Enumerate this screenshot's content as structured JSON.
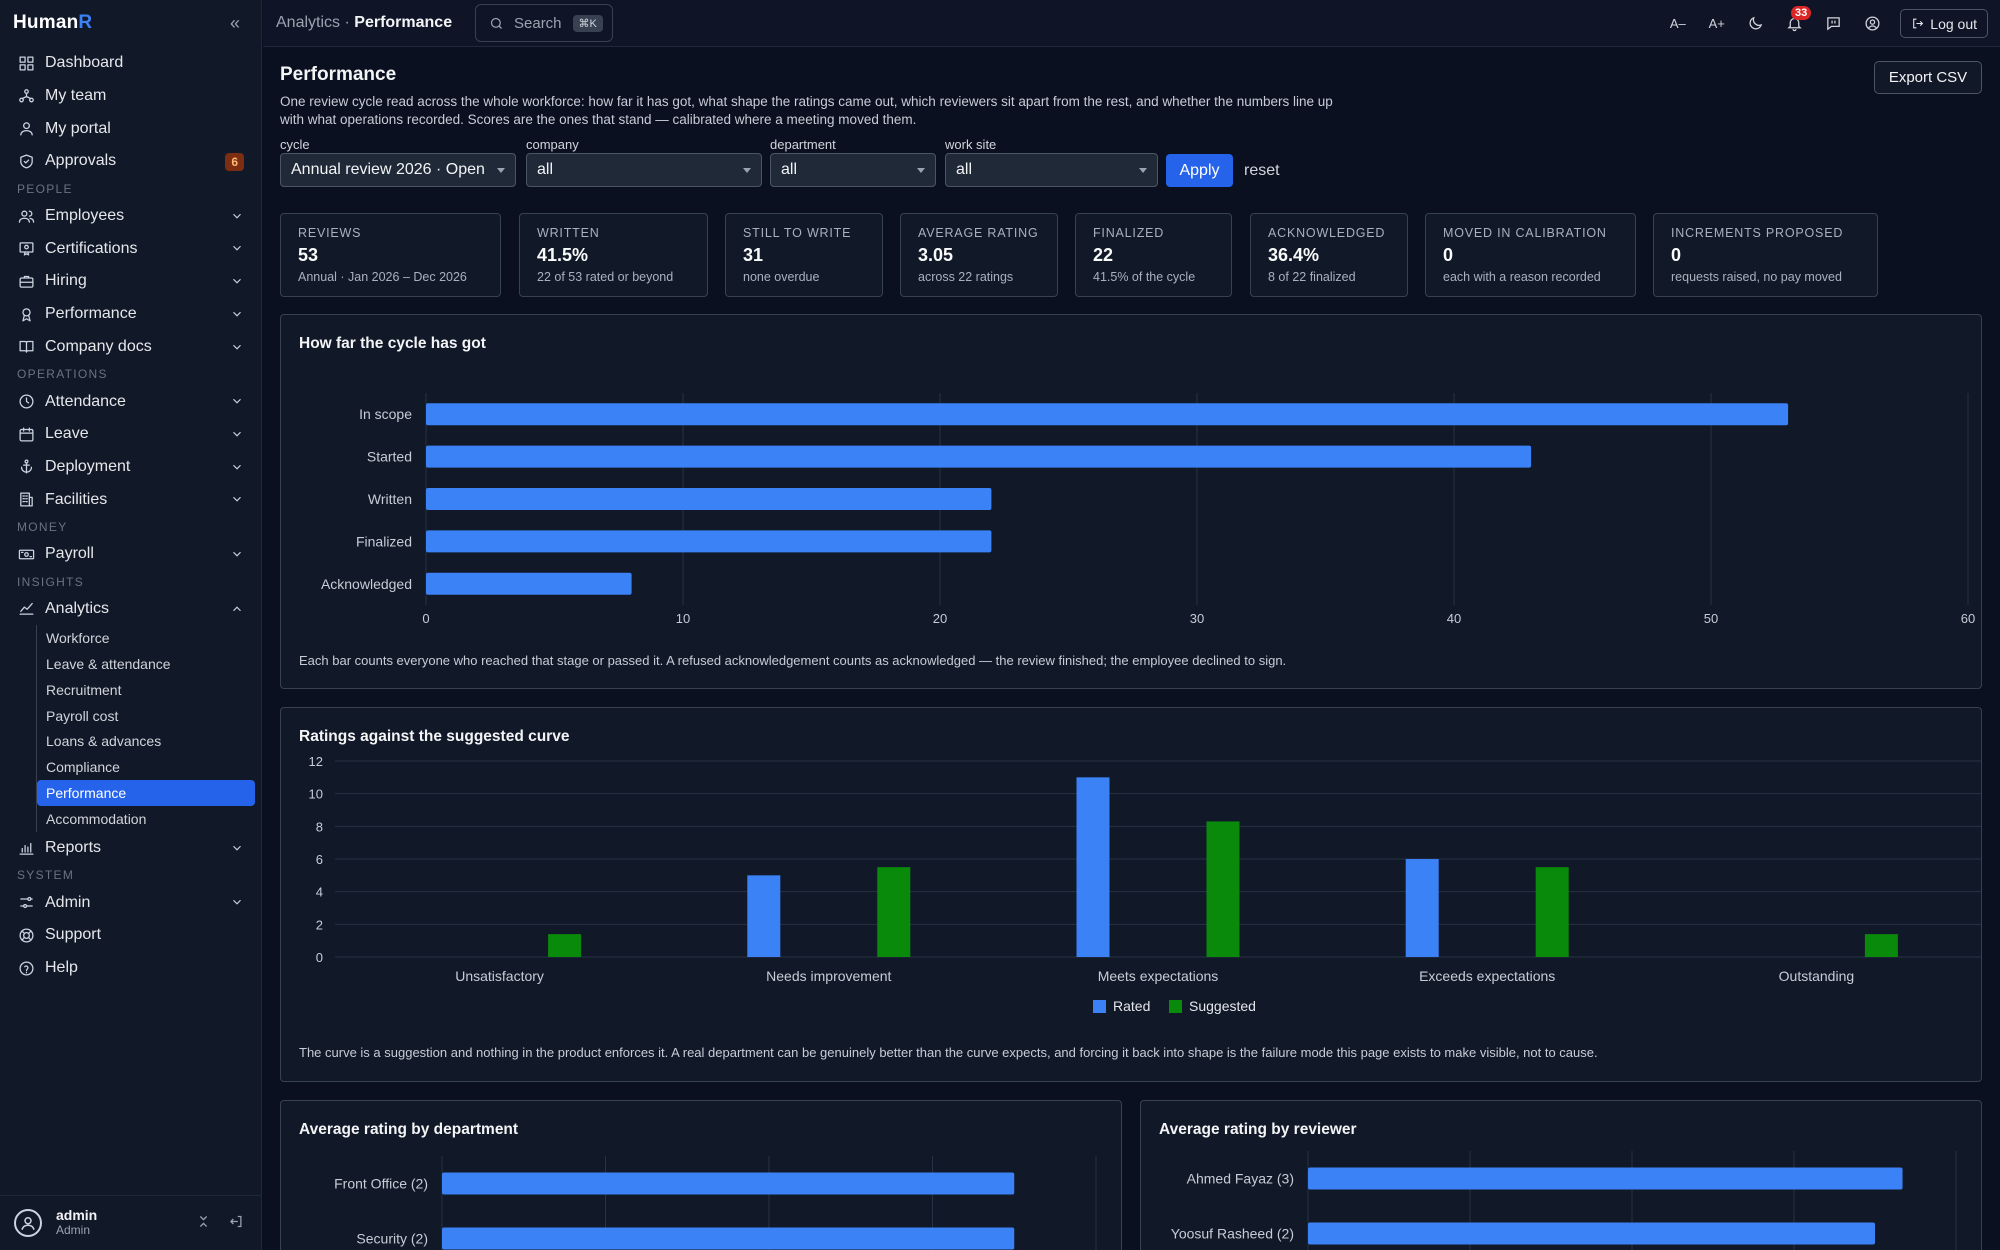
{
  "brand": {
    "name": "Human",
    "accent": "R"
  },
  "sidebar": {
    "items": [
      {
        "label": "Dashboard",
        "icon": "grid-icon"
      },
      {
        "label": "My team",
        "icon": "team-icon"
      },
      {
        "label": "My portal",
        "icon": "user-icon"
      },
      {
        "label": "Approvals",
        "icon": "shield-check-icon",
        "badge": "6"
      }
    ],
    "people_label": "PEOPLE",
    "people": [
      {
        "label": "Employees",
        "icon": "users-icon"
      },
      {
        "label": "Certifications",
        "icon": "certificate-icon"
      },
      {
        "label": "Hiring",
        "icon": "briefcase-icon"
      },
      {
        "label": "Performance",
        "icon": "award-icon"
      },
      {
        "label": "Company docs",
        "icon": "book-icon"
      }
    ],
    "operations_label": "OPERATIONS",
    "operations": [
      {
        "label": "Attendance",
        "icon": "clock-icon"
      },
      {
        "label": "Leave",
        "icon": "calendar-icon"
      },
      {
        "label": "Deployment",
        "icon": "anchor-icon"
      },
      {
        "label": "Facilities",
        "icon": "building-icon"
      }
    ],
    "money_label": "MONEY",
    "money": [
      {
        "label": "Payroll",
        "icon": "cash-icon"
      }
    ],
    "insights_label": "INSIGHTS",
    "analytics": {
      "label": "Analytics",
      "icon": "chart-line-icon"
    },
    "analytics_sub": [
      "Workforce",
      "Leave & attendance",
      "Recruitment",
      "Payroll cost",
      "Loans & advances",
      "Compliance",
      "Performance",
      "Accommodation"
    ],
    "active_sub": "Performance",
    "reports": {
      "label": "Reports",
      "icon": "report-icon"
    },
    "system_label": "SYSTEM",
    "system": [
      {
        "label": "Admin",
        "icon": "sliders-icon",
        "chevron": true
      },
      {
        "label": "Support",
        "icon": "lifebuoy-icon"
      },
      {
        "label": "Help",
        "icon": "help-icon"
      }
    ],
    "user": {
      "name": "admin",
      "role": "Admin"
    }
  },
  "topbar": {
    "crumb_parent": "Analytics",
    "crumb_sep": "·",
    "crumb_current": "Performance",
    "search_placeholder": "Search",
    "search_kbd": "⌘K",
    "font_smaller": "A–",
    "font_larger": "A+",
    "notifications": "33",
    "logout": "Log out"
  },
  "page": {
    "title": "Performance",
    "description": "One review cycle read across the whole workforce: how far it has got, what shape the ratings came out, which reviewers sit apart from the rest, and whether the numbers line up with what operations recorded. Scores are the ones that stand — calibrated where a meeting moved them.",
    "export": "Export CSV"
  },
  "filters": [
    {
      "label": "cycle",
      "value": "Annual review 2026 · Open"
    },
    {
      "label": "company",
      "value": "all"
    },
    {
      "label": "department",
      "value": "all"
    },
    {
      "label": "work site",
      "value": "all"
    }
  ],
  "apply": "Apply",
  "reset": "reset",
  "kpis": [
    {
      "label": "REVIEWS",
      "value": "53",
      "sub": "Annual · Jan 2026 – Dec 2026"
    },
    {
      "label": "WRITTEN",
      "value": "41.5%",
      "sub": "22 of 53 rated or beyond"
    },
    {
      "label": "STILL TO WRITE",
      "value": "31",
      "sub": "none overdue"
    },
    {
      "label": "AVERAGE RATING",
      "value": "3.05",
      "sub": "across 22 ratings"
    },
    {
      "label": "FINALIZED",
      "value": "22",
      "sub": "41.5% of the cycle"
    },
    {
      "label": "ACKNOWLEDGED",
      "value": "36.4%",
      "sub": "8 of 22 finalized"
    },
    {
      "label": "MOVED IN CALIBRATION",
      "value": "0",
      "sub": "each with a reason recorded"
    },
    {
      "label": "INCREMENTS PROPOSED",
      "value": "0",
      "sub": "requests raised, no pay moved"
    }
  ],
  "chart_data": [
    {
      "type": "bar",
      "orientation": "horizontal",
      "title": "How far the cycle has got",
      "categories": [
        "In scope",
        "Started",
        "Written",
        "Finalized",
        "Acknowledged"
      ],
      "values": [
        53,
        43,
        22,
        22,
        8
      ],
      "xlim": [
        0,
        60
      ],
      "xticks": [
        0,
        10,
        20,
        30,
        40,
        50,
        60
      ],
      "grid": true,
      "color": "#3b82f6",
      "note": "Each bar counts everyone who reached that stage or passed it. A refused acknowledgement counts as acknowledged — the review finished; the employee declined to sign."
    },
    {
      "type": "bar",
      "title": "Ratings against the suggested curve",
      "categories": [
        "Unsatisfactory",
        "Needs improvement",
        "Meets expectations",
        "Exceeds expectations",
        "Outstanding"
      ],
      "series": [
        {
          "name": "Rated",
          "values": [
            0,
            5,
            11,
            6,
            0
          ],
          "color": "#3b82f6"
        },
        {
          "name": "Suggested",
          "values": [
            1.4,
            5.5,
            8.3,
            5.5,
            1.4
          ],
          "color": "#0a8a0a"
        }
      ],
      "ylim": [
        0,
        12
      ],
      "yticks": [
        0,
        2,
        4,
        6,
        8,
        10,
        12
      ],
      "legend": "bottom",
      "grid": true,
      "note": "The curve is a suggestion and nothing in the product enforces it. A real department can be genuinely better than the curve expects, and forcing it back into shape is the failure mode this page exists to make visible, not to cause."
    },
    {
      "type": "bar",
      "orientation": "horizontal",
      "title": "Average rating by department",
      "categories": [
        "Front Office (2)",
        "Security (2)"
      ],
      "values": [
        3.5,
        3.5
      ],
      "xlim": [
        0,
        4
      ],
      "color": "#3b82f6"
    },
    {
      "type": "bar",
      "orientation": "horizontal",
      "title": "Average rating by reviewer",
      "categories": [
        "Ahmed Fayaz (3)",
        "Yoosuf Rasheed (2)"
      ],
      "values": [
        3.67,
        3.5
      ],
      "xlim": [
        0,
        4
      ],
      "color": "#3b82f6"
    }
  ]
}
